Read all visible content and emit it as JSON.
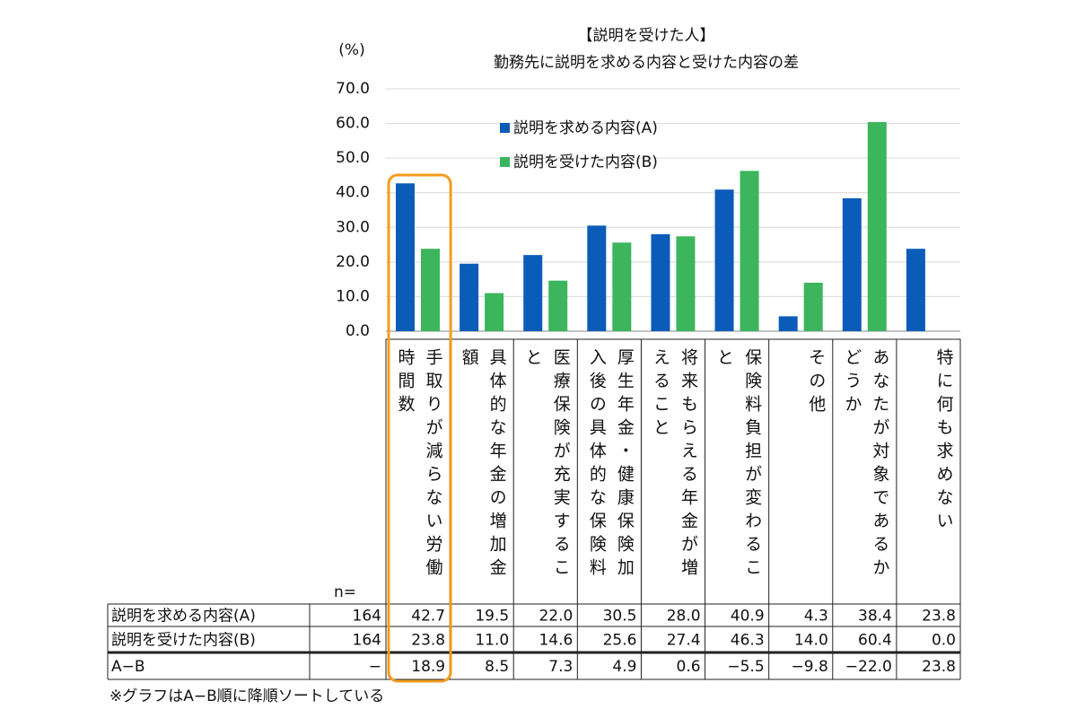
{
  "chart_data": {
    "type": "bar",
    "title": "【説明を受けた人】",
    "subtitle": "勤務先に説明を求める内容と受けた内容の差",
    "y_label": "(%)",
    "n_label": "n=",
    "note": "※グラフはA−B順に降順ソートしている",
    "categories": [
      "手取りが減らない労働時間数",
      "具体的な年金の増加金額",
      "医療保険が充実すること",
      "厚生年金・健康保険加入後の具体的な保険料",
      "将来もらえる年金が増えること",
      "保険料負担が変わること",
      "その他",
      "あなたが対象であるかどうか",
      "特に何も求めない"
    ],
    "series": [
      {
        "name": "説明を求める内容(A)",
        "color": "#0b5cb8",
        "n": 164,
        "values": [
          42.7,
          19.5,
          22.0,
          30.5,
          28.0,
          40.9,
          4.3,
          38.4,
          23.8
        ],
        "value_labels": [
          "42.7",
          "19.5",
          "22.0",
          "30.5",
          "28.0",
          "40.9",
          "4.3",
          "38.4",
          "23.8"
        ]
      },
      {
        "name": "説明を受けた内容(B)",
        "color": "#3cb55c",
        "n": 164,
        "values": [
          23.8,
          11.0,
          14.6,
          25.6,
          27.4,
          46.3,
          14.0,
          60.4,
          0.0
        ],
        "value_labels": [
          "23.8",
          "11.0",
          "14.6",
          "25.6",
          "27.4",
          "46.3",
          "14.0",
          "60.4",
          "0.0"
        ]
      }
    ],
    "difference": {
      "name": "A−B",
      "n": "−",
      "values": [
        18.9,
        8.5,
        7.3,
        4.9,
        0.6,
        -5.5,
        -9.8,
        -22.0,
        23.8
      ],
      "value_labels": [
        "18.9",
        "8.5",
        "7.3",
        "4.9",
        "0.6",
        "−5.5",
        "−9.8",
        "−22.0",
        "23.8"
      ]
    },
    "ylim": [
      0,
      70
    ],
    "yticks": [
      {
        "value": 0,
        "label": "0.0"
      },
      {
        "value": 10,
        "label": "10.0"
      },
      {
        "value": 20,
        "label": "20.0"
      },
      {
        "value": 30,
        "label": "30.0"
      },
      {
        "value": 40,
        "label": "40.0"
      },
      {
        "value": 50,
        "label": "50.0"
      },
      {
        "value": 60,
        "label": "60.0"
      },
      {
        "value": 70,
        "label": "70.0"
      }
    ],
    "grid": true
  }
}
